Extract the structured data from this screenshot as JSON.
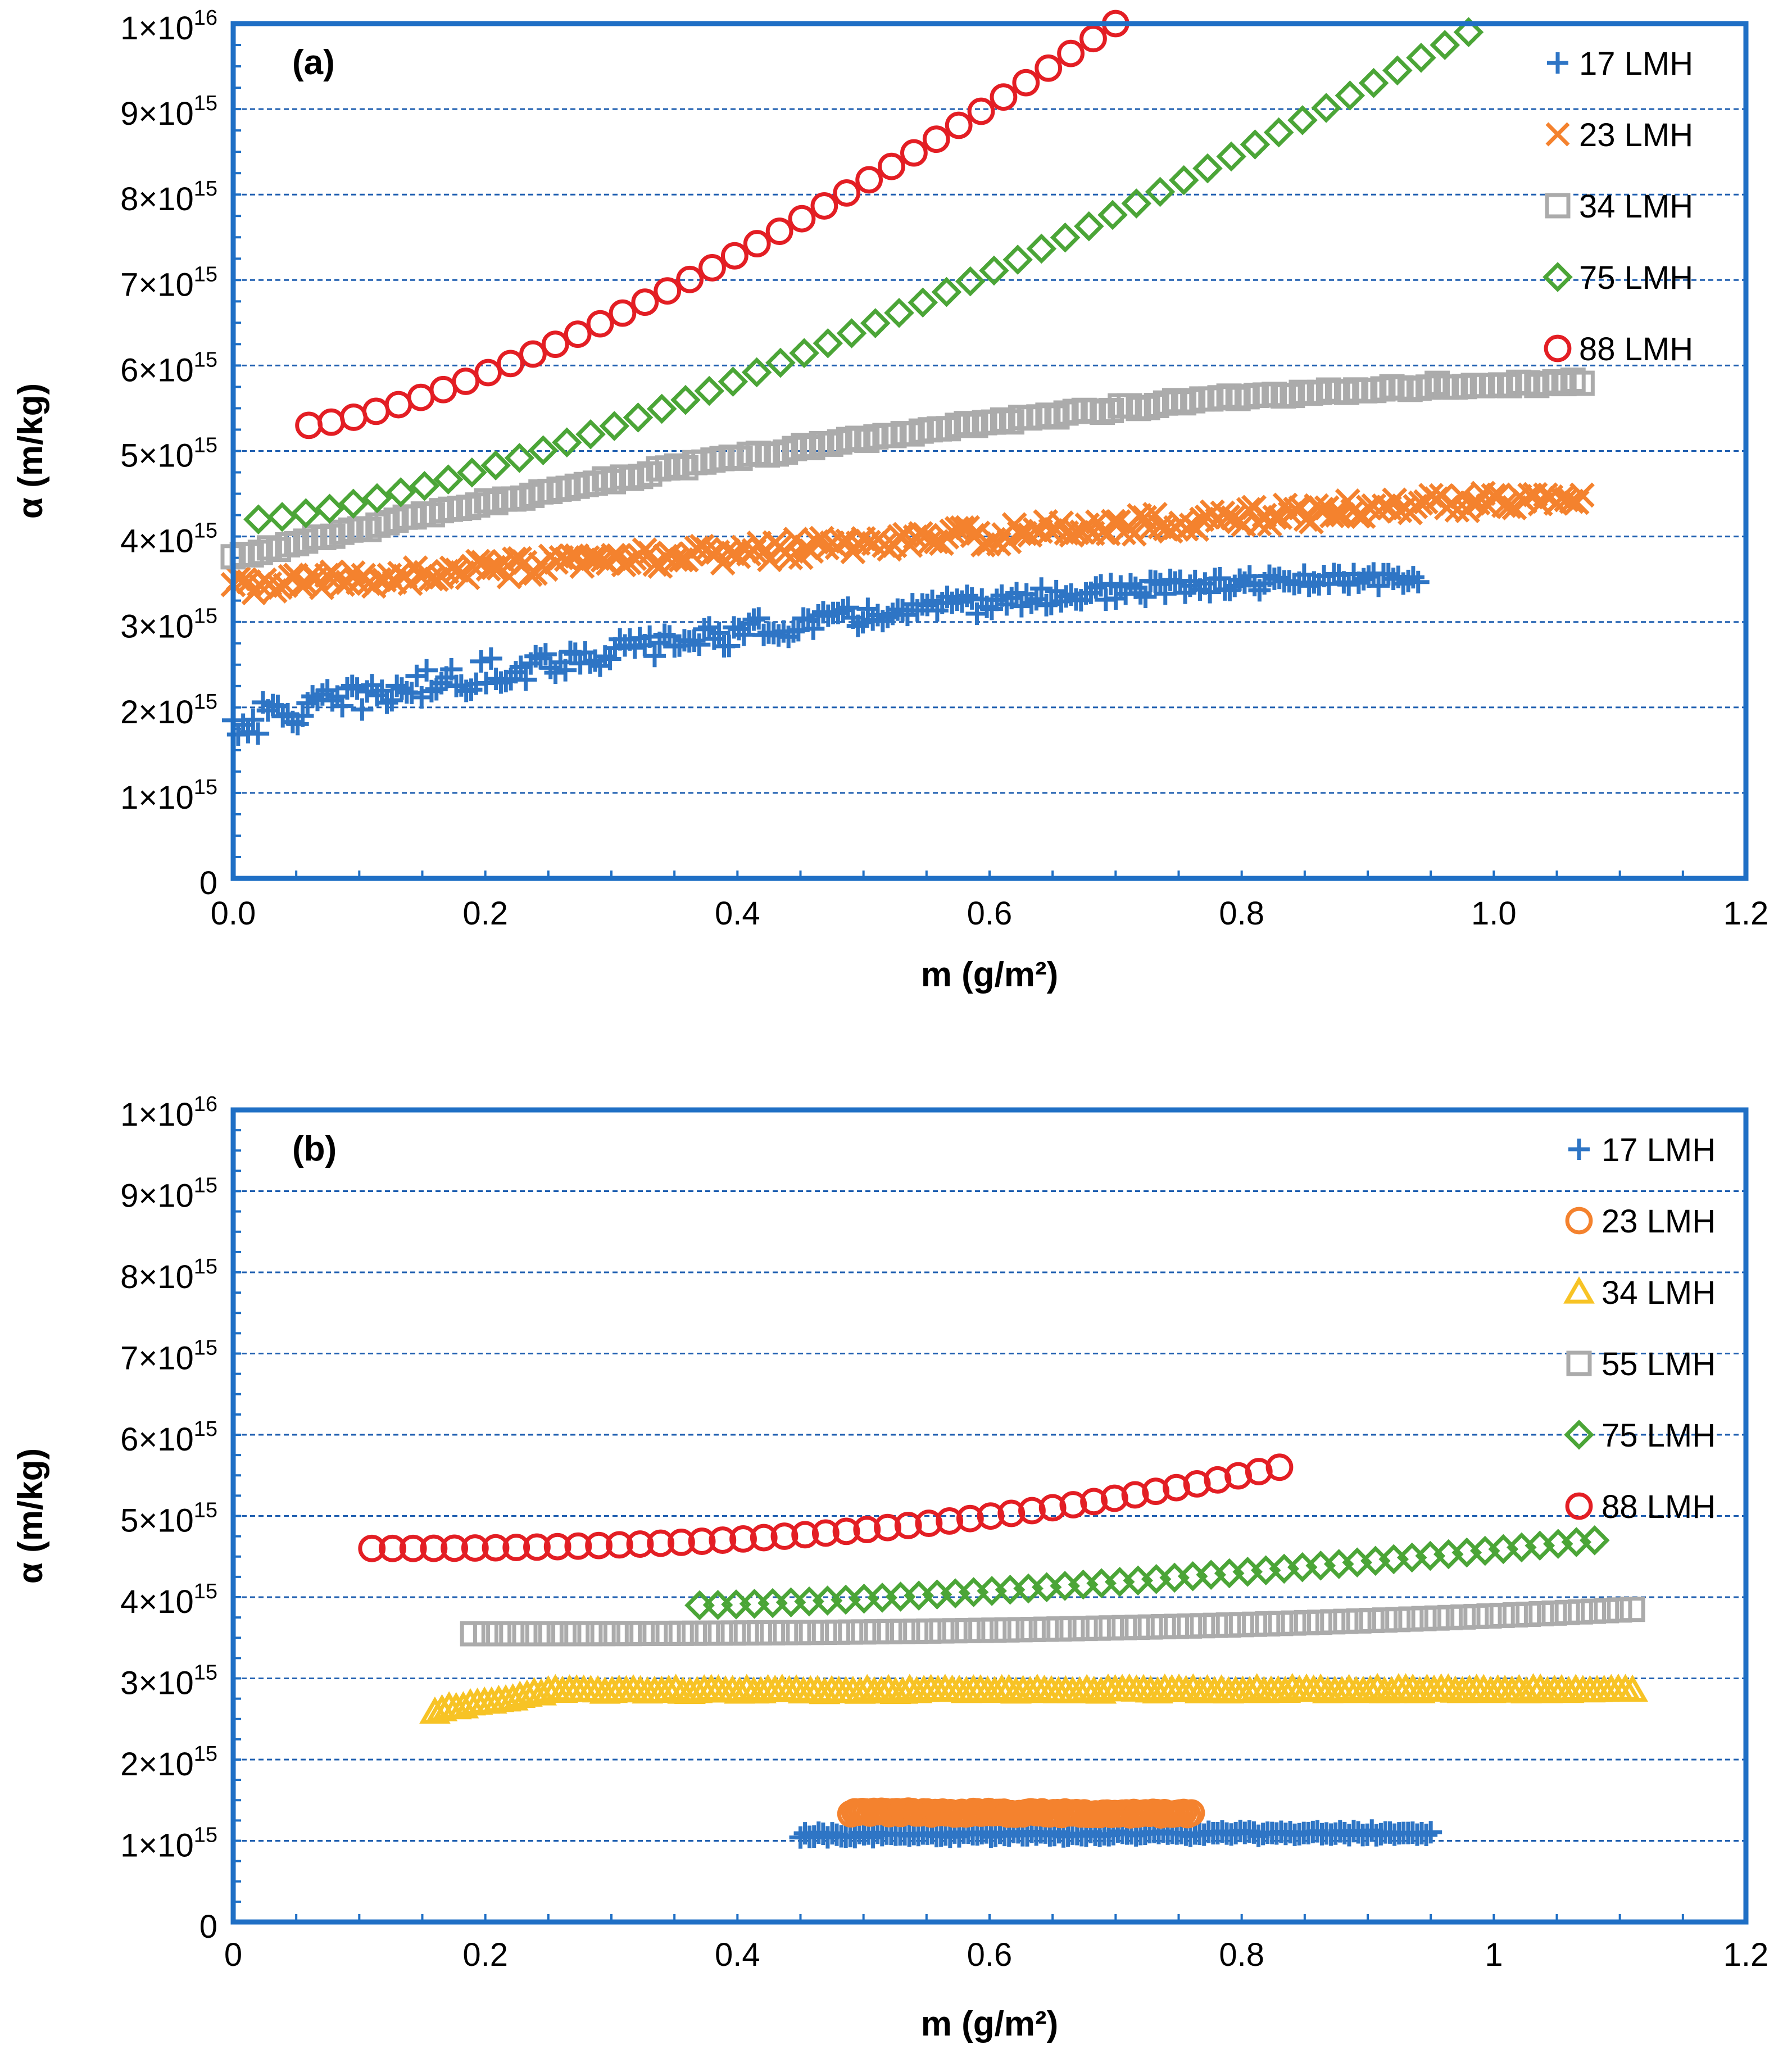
{
  "chart_data": [
    {
      "type": "scatter",
      "panel_label": "(a)",
      "xlabel": "m (g/m²)",
      "ylabel": "α (m/kg)",
      "xlim": [
        0,
        1.2
      ],
      "ylim": [
        0,
        1e+16
      ],
      "x_ticks": [
        "0.0",
        "0.2",
        "0.4",
        "0.6",
        "0.8",
        "1.0",
        "1.2"
      ],
      "x_tick_values": [
        0,
        0.2,
        0.4,
        0.6,
        0.8,
        1.0,
        1.2
      ],
      "y_ticks": [
        {
          "value": 0,
          "base": "0",
          "exp": ""
        },
        {
          "value": 1000000000000000.0,
          "base": "1×10",
          "exp": "15"
        },
        {
          "value": 2000000000000000.0,
          "base": "2×10",
          "exp": "15"
        },
        {
          "value": 3000000000000000.0,
          "base": "3×10",
          "exp": "15"
        },
        {
          "value": 4000000000000000.0,
          "base": "4×10",
          "exp": "15"
        },
        {
          "value": 5000000000000000.0,
          "base": "5×10",
          "exp": "15"
        },
        {
          "value": 6000000000000000.0,
          "base": "6×10",
          "exp": "15"
        },
        {
          "value": 7000000000000000.0,
          "base": "7×10",
          "exp": "15"
        },
        {
          "value": 8000000000000000.0,
          "base": "8×10",
          "exp": "15"
        },
        {
          "value": 9000000000000000.0,
          "base": "9×10",
          "exp": "15"
        },
        {
          "value": 1e+16,
          "base": "1×10",
          "exp": "16"
        }
      ],
      "grid": true,
      "legend_position": "top-right",
      "series": [
        {
          "name": "17 LMH",
          "marker": "plus",
          "color": "#2E75C5",
          "x_range": [
            0.0,
            0.94
          ],
          "y_start": 1800000000000000.0,
          "y_end": 3500000000000000.0,
          "shape": "rising-concave",
          "noise": 120000000000000.0,
          "n": 240
        },
        {
          "name": "23 LMH",
          "marker": "x",
          "color": "#F4822E",
          "x_range": [
            0.0,
            1.07
          ],
          "y_start": 3400000000000000.0,
          "y_end": 4500000000000000.0,
          "shape": "linear",
          "noise": 110000000000000.0,
          "n": 260
        },
        {
          "name": "34 LMH",
          "marker": "square",
          "color": "#ABABAB",
          "x_range": [
            0.0,
            1.07
          ],
          "y_start": 3750000000000000.0,
          "y_end": 5800000000000000.0,
          "shape": "rising-concave",
          "noise": 30000000000000.0,
          "n": 150
        },
        {
          "name": "75 LMH",
          "marker": "diamond",
          "color": "#4BA537",
          "x_range": [
            0.02,
            0.98
          ],
          "y_start": 4200000000000000.0,
          "y_end": 9900000000000000.0,
          "shape": "rising-convex",
          "noise": 0,
          "n": 52
        },
        {
          "name": "88 LMH",
          "marker": "circle",
          "color": "#E31E24",
          "x_range": [
            0.06,
            0.7
          ],
          "y_start": 5300000000000000.0,
          "y_end": 1e+16,
          "shape": "rising-convex",
          "noise": 0,
          "n": 37
        }
      ]
    },
    {
      "type": "scatter",
      "panel_label": "(b)",
      "xlabel": "m (g/m²)",
      "ylabel": "α (m/kg)",
      "xlim": [
        0,
        1.2
      ],
      "ylim": [
        0,
        1e+16
      ],
      "x_ticks": [
        "0",
        "0.2",
        "0.4",
        "0.6",
        "0.8",
        "1",
        "1.2"
      ],
      "x_tick_values": [
        0,
        0.2,
        0.4,
        0.6,
        0.8,
        1.0,
        1.2
      ],
      "y_ticks": [
        {
          "value": 0,
          "base": "0",
          "exp": ""
        },
        {
          "value": 1000000000000000.0,
          "base": "1×10",
          "exp": "15"
        },
        {
          "value": 2000000000000000.0,
          "base": "2×10",
          "exp": "15"
        },
        {
          "value": 3000000000000000.0,
          "base": "3×10",
          "exp": "15"
        },
        {
          "value": 4000000000000000.0,
          "base": "4×10",
          "exp": "15"
        },
        {
          "value": 5000000000000000.0,
          "base": "5×10",
          "exp": "15"
        },
        {
          "value": 6000000000000000.0,
          "base": "6×10",
          "exp": "15"
        },
        {
          "value": 7000000000000000.0,
          "base": "7×10",
          "exp": "15"
        },
        {
          "value": 8000000000000000.0,
          "base": "8×10",
          "exp": "15"
        },
        {
          "value": 9000000000000000.0,
          "base": "9×10",
          "exp": "15"
        },
        {
          "value": 1e+16,
          "base": "1×10",
          "exp": "16"
        }
      ],
      "grid": true,
      "legend_position": "top-right",
      "series": [
        {
          "name": "17 LMH",
          "marker": "plus",
          "color": "#2E75C5",
          "x_range": [
            0.45,
            0.95
          ],
          "y_start": 1070000000000000.0,
          "y_end": 1100000000000000.0,
          "shape": "flat",
          "noise": 30000000000000.0,
          "n": 140
        },
        {
          "name": "23 LMH",
          "marker": "circle",
          "color": "#F4822E",
          "x_range": [
            0.49,
            0.76
          ],
          "y_start": 1350000000000000.0,
          "y_end": 1330000000000000.0,
          "shape": "flat",
          "noise": 20000000000000.0,
          "n": 90
        },
        {
          "name": "34 LMH",
          "marker": "triangle",
          "color": "#F7C325",
          "x_range": [
            0.16,
            1.11
          ],
          "y_start": 2600000000000000.0,
          "y_end": 2850000000000000.0,
          "shape": "plateau",
          "noise": 20000000000000.0,
          "n": 170
        },
        {
          "name": "55 LMH",
          "marker": "square",
          "color": "#ABABAB",
          "x_range": [
            0.19,
            1.11
          ],
          "y_start": 3550000000000000.0,
          "y_end": 3850000000000000.0,
          "shape": "sag",
          "noise": 0,
          "n": 90
        },
        {
          "name": "75 LMH",
          "marker": "diamond",
          "color": "#4BA537",
          "x_range": [
            0.37,
            1.08
          ],
          "y_start": 3900000000000000.0,
          "y_end": 4700000000000000.0,
          "shape": "rising-convex",
          "noise": 0,
          "n": 50
        },
        {
          "name": "88 LMH",
          "marker": "circle",
          "color": "#E31E24",
          "x_range": [
            0.11,
            0.83
          ],
          "y_start": 4600000000000000.0,
          "y_end": 5600000000000000.0,
          "shape": "sag",
          "noise": 0,
          "n": 45
        }
      ]
    }
  ]
}
